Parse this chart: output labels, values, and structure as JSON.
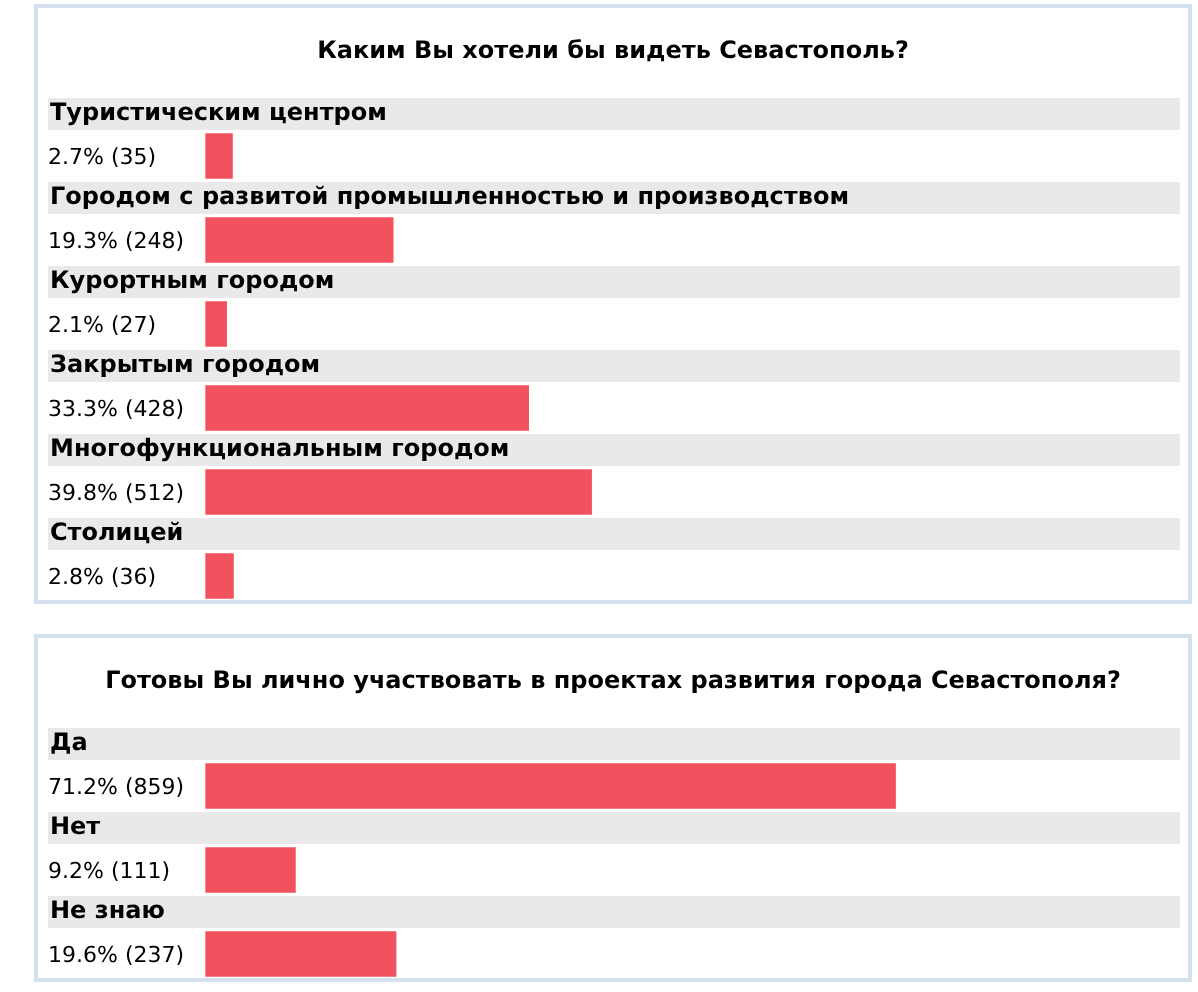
{
  "chart_data": [
    {
      "type": "bar",
      "orientation": "horizontal",
      "title": "Каким Вы хотели бы видеть Севастополь?",
      "categories": [
        "Туристическим центром",
        "Городом с развитой промышленностью и производством",
        "Курортным городом",
        "Закрытым городом",
        "Многофункциональным городом",
        "Столицей"
      ],
      "values": [
        2.7,
        19.3,
        2.1,
        33.3,
        39.8,
        2.8
      ],
      "value_labels": [
        "2.7% (35)",
        "19.3% (248)",
        "2.1% (27)",
        "33.3% (428)",
        "39.8% (512)",
        "2.8% (36)"
      ],
      "color": "#f2525e",
      "tick_labels": "y"
    },
    {
      "type": "bar",
      "orientation": "horizontal",
      "title": "Готовы Вы лично участвовать в проектах развития города Севастополя?",
      "categories": [
        "Да",
        "Нет",
        "Не знаю"
      ],
      "values": [
        71.2,
        9.2,
        19.6
      ],
      "value_labels": [
        "71.2% (859)",
        "9.2% (111)",
        "19.6% (237)"
      ],
      "color": "#f2525e",
      "tick_labels": "y"
    }
  ]
}
